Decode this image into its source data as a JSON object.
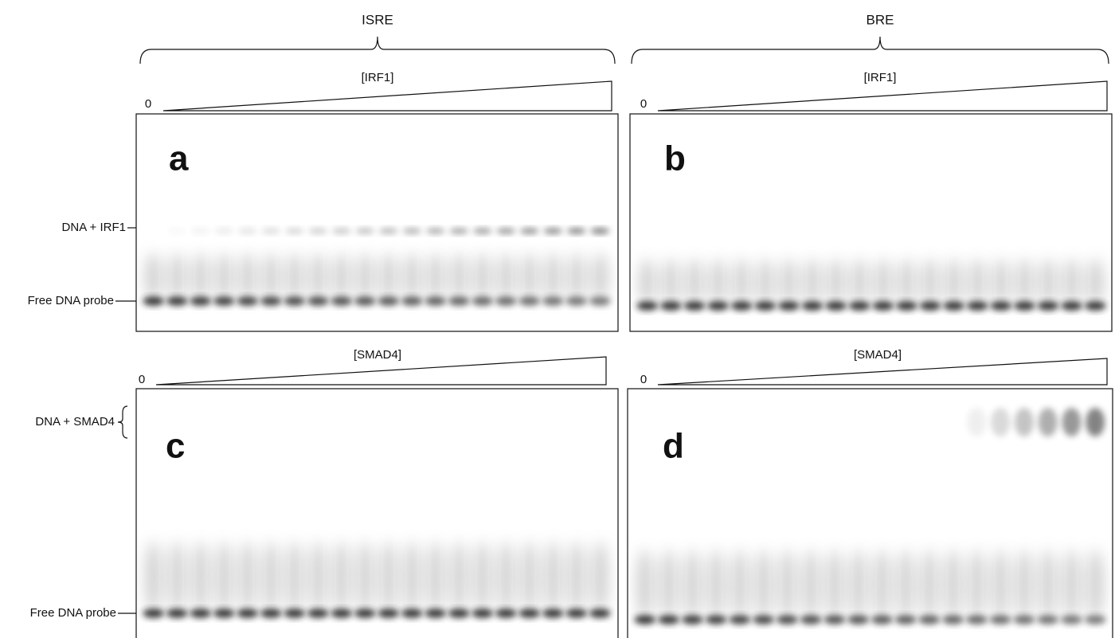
{
  "headers": [
    "ISRE",
    "BRE"
  ],
  "panels": [
    {
      "letter": "a",
      "zero": "0",
      "titrant": "[IRF1]"
    },
    {
      "letter": "b",
      "zero": "0",
      "titrant": "[IRF1]"
    },
    {
      "letter": "c",
      "zero": "0",
      "titrant": "[SMAD4]"
    },
    {
      "letter": "d",
      "zero": "0",
      "titrant": "[SMAD4]"
    }
  ],
  "row_labels": {
    "top_complex": "DNA + IRF1",
    "top_free": "Free DNA probe",
    "bottom_complex": "DNA + SMAD4",
    "bottom_free": "Free DNA probe"
  }
}
